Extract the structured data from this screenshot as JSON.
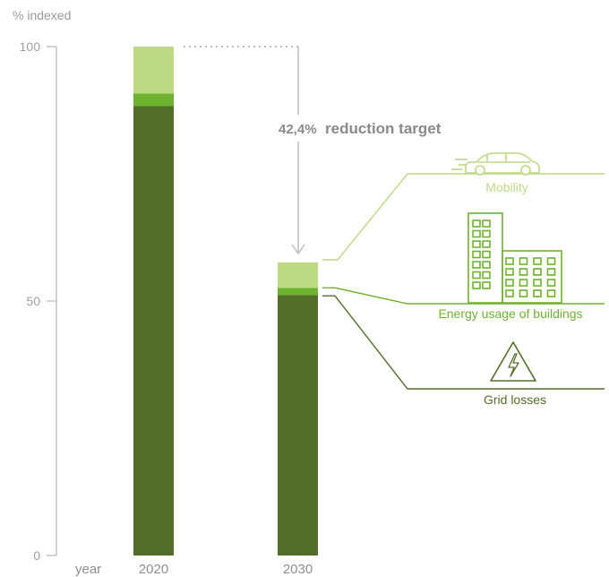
{
  "chart_data": {
    "type": "bar",
    "stacked": true,
    "ylabel": "% indexed",
    "xlabel": "year",
    "ylim": [
      0,
      100
    ],
    "yticks": [
      0,
      50,
      100
    ],
    "categories": [
      "2020",
      "2030"
    ],
    "series": [
      {
        "name": "Grid losses",
        "values": [
          88.3,
          51.2
        ],
        "color": "#526e28"
      },
      {
        "name": "Energy usage of buildings",
        "values": [
          2.5,
          1.4
        ],
        "color": "#6db32e"
      },
      {
        "name": "Mobility",
        "values": [
          9.2,
          5.0
        ],
        "color": "#bdd985"
      }
    ],
    "annotation": {
      "value": "42,4%",
      "text": "reduction target"
    },
    "grid": false,
    "legend": "right"
  },
  "colors": {
    "axis": "#b4b4b4",
    "dark": "#526e28",
    "mid": "#6db32e",
    "light": "#bdd985",
    "arrow": "#bdbdbd"
  },
  "icons": [
    "car-icon",
    "buildings-icon",
    "high-voltage-icon"
  ]
}
